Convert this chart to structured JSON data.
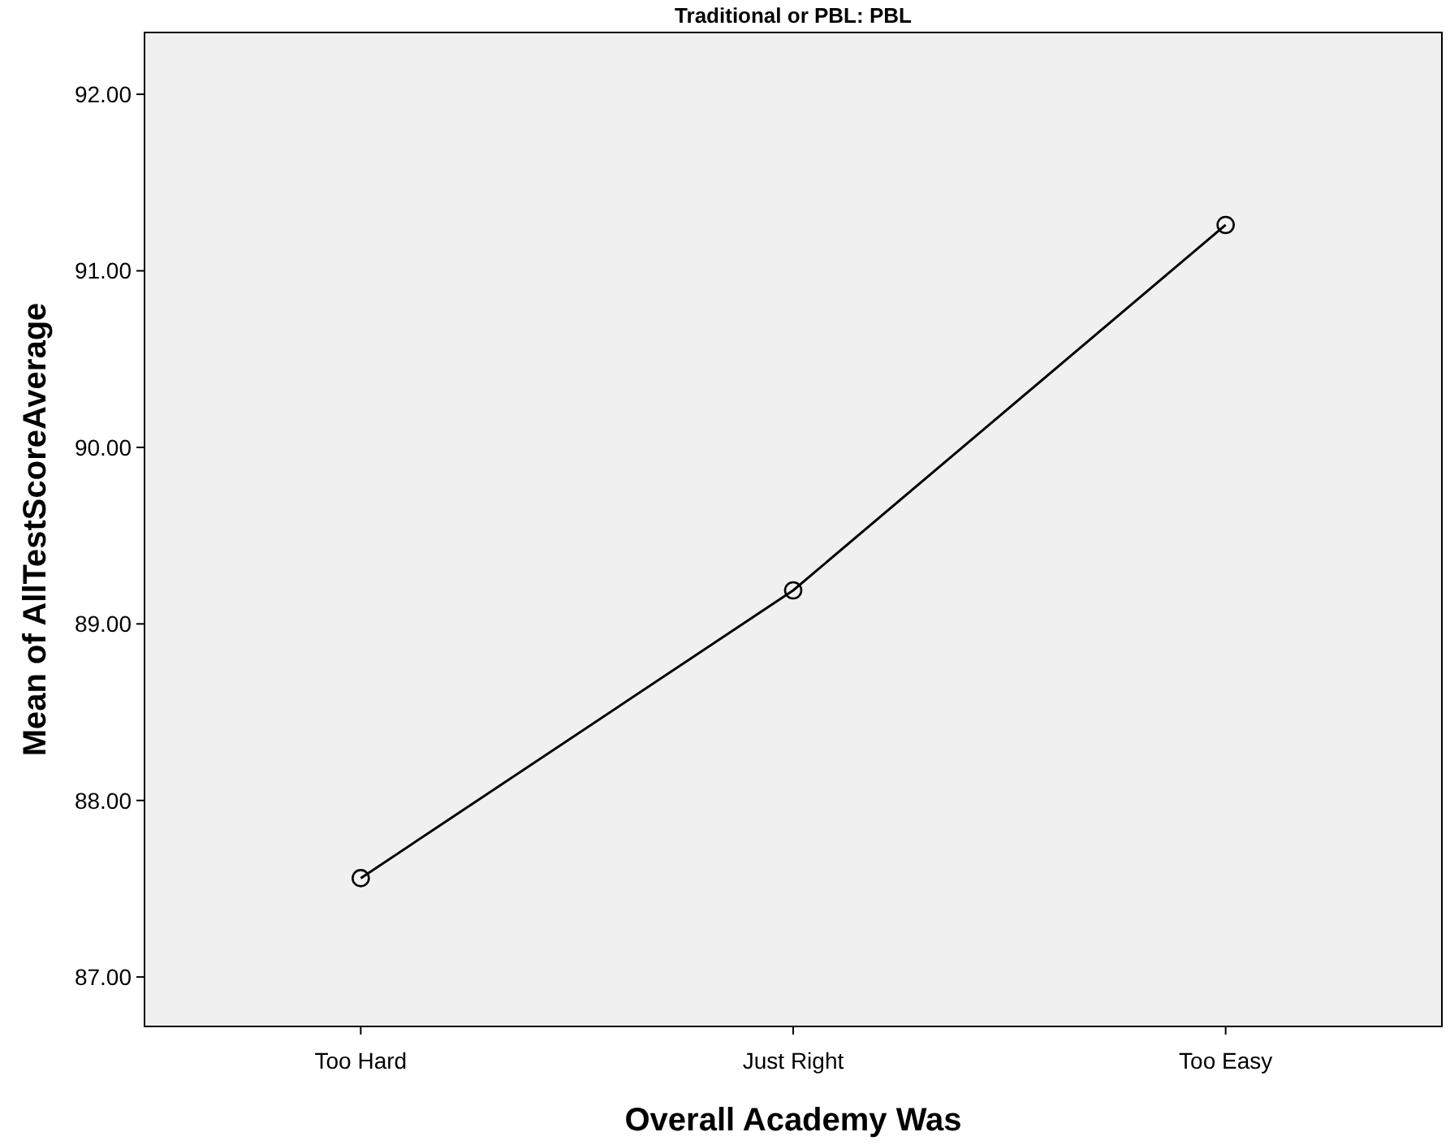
{
  "chart_data": {
    "type": "line",
    "title": "Traditional or PBL: PBL",
    "xlabel": "Overall Academy Was",
    "ylabel": "Mean of AllTestScoreAverage",
    "categories": [
      "Too Hard",
      "Just Right",
      "Too Easy"
    ],
    "series": [
      {
        "color": "#000000",
        "values": [
          87.56,
          89.19,
          91.26
        ]
      }
    ],
    "ylim": [
      86.72,
      92.35
    ],
    "yticks": [
      {
        "value": 87,
        "label": "87.00"
      },
      {
        "value": 88,
        "label": "88.00"
      },
      {
        "value": 89,
        "label": "89.00"
      },
      {
        "value": 90,
        "label": "90.00"
      },
      {
        "value": 91,
        "label": "91.00"
      },
      {
        "value": 92,
        "label": "92.00"
      }
    ],
    "grid": false,
    "marker": "circle",
    "line_style": "solid"
  }
}
